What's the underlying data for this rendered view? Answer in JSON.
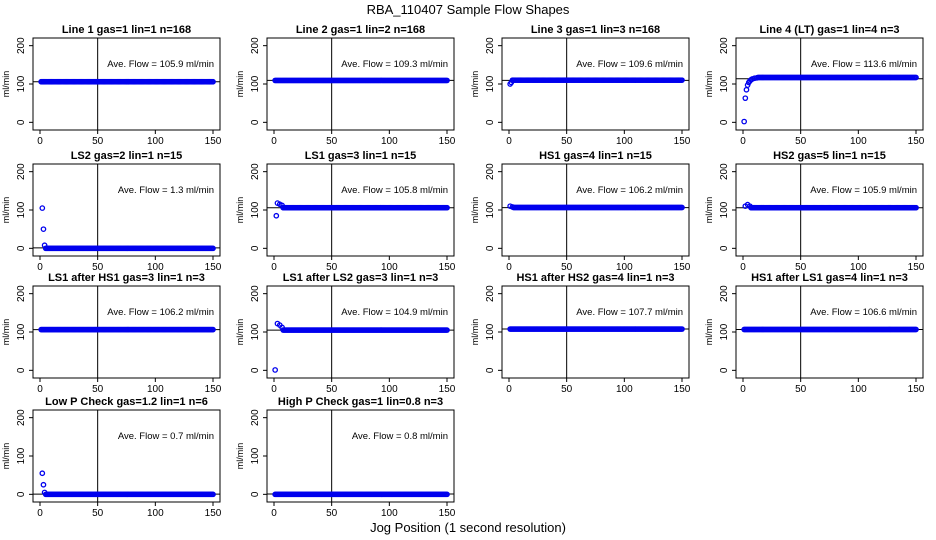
{
  "title": "RBA_110407  Sample Flow Shapes",
  "xlabel": "Jog Position (1 second resolution)",
  "colors": {
    "points": "#0000ee",
    "axis": "#000000",
    "background": "#ffffff"
  },
  "chart_data": [
    {
      "type": "scatter",
      "title": "Line 1 gas=1 lin=1 n=168",
      "ylabel": "ml/min",
      "annotation": "Ave. Flow = 105.9  ml/min",
      "xlim": [
        0,
        150
      ],
      "ylim": [
        -20,
        220
      ],
      "xticks": [
        0,
        50,
        100,
        150
      ],
      "yticks": [
        0,
        100,
        200
      ],
      "vline": 50,
      "hline": 105.9,
      "plateau": 105.9,
      "x_end": 150,
      "spike_points": []
    },
    {
      "type": "scatter",
      "title": "Line 2 gas=1 lin=2 n=168",
      "ylabel": "ml/min",
      "annotation": "Ave. Flow = 109.3  ml/min",
      "xlim": [
        0,
        150
      ],
      "ylim": [
        -20,
        220
      ],
      "xticks": [
        0,
        50,
        100,
        150
      ],
      "yticks": [
        0,
        100,
        200
      ],
      "vline": 50,
      "hline": 109.3,
      "plateau": 109.3,
      "x_end": 150,
      "spike_points": []
    },
    {
      "type": "scatter",
      "title": "Line 3 gas=1 lin=3 n=168",
      "ylabel": "ml/min",
      "annotation": "Ave. Flow = 109.6  ml/min",
      "xlim": [
        0,
        150
      ],
      "ylim": [
        -20,
        220
      ],
      "xticks": [
        0,
        50,
        100,
        150
      ],
      "yticks": [
        0,
        100,
        200
      ],
      "vline": 50,
      "hline": 109.6,
      "plateau": 110,
      "x_end": 150,
      "spike_points": [
        [
          1,
          100
        ],
        [
          2,
          104
        ]
      ]
    },
    {
      "type": "scatter",
      "title": "Line 4 (LT) gas=1 lin=4 n=3",
      "ylabel": "ml/min",
      "annotation": "Ave. Flow = 113.6  ml/min",
      "xlim": [
        0,
        150
      ],
      "ylim": [
        -20,
        220
      ],
      "xticks": [
        0,
        50,
        100,
        150
      ],
      "yticks": [
        0,
        100,
        200
      ],
      "vline": 50,
      "hline": 113.6,
      "plateau": 117,
      "x_end": 150,
      "spike_points": [
        [
          1,
          2
        ],
        [
          2,
          63
        ],
        [
          3,
          85
        ],
        [
          4,
          97
        ],
        [
          5,
          104
        ],
        [
          6,
          108
        ],
        [
          7,
          111
        ],
        [
          8,
          113
        ],
        [
          10,
          115
        ],
        [
          12,
          116
        ]
      ]
    },
    {
      "type": "scatter",
      "title": "LS2 gas=2 lin=1 n=15",
      "ylabel": "ml/min",
      "annotation": "Ave. Flow = 1.3  ml/min",
      "xlim": [
        0,
        150
      ],
      "ylim": [
        -20,
        220
      ],
      "xticks": [
        0,
        50,
        100,
        150
      ],
      "yticks": [
        0,
        100,
        200
      ],
      "vline": 50,
      "hline": 1.3,
      "plateau": 0,
      "x_end": 150,
      "spike_points": [
        [
          2,
          105
        ],
        [
          3,
          50
        ],
        [
          4,
          8
        ]
      ]
    },
    {
      "type": "scatter",
      "title": "LS1 gas=3 lin=1 n=15",
      "ylabel": "ml/min",
      "annotation": "Ave. Flow = 105.8  ml/min",
      "xlim": [
        0,
        150
      ],
      "ylim": [
        -20,
        220
      ],
      "xticks": [
        0,
        50,
        100,
        150
      ],
      "yticks": [
        0,
        100,
        200
      ],
      "vline": 50,
      "hline": 105.8,
      "plateau": 106,
      "x_end": 150,
      "spike_points": [
        [
          2,
          85
        ],
        [
          3,
          118
        ],
        [
          5,
          115
        ],
        [
          7,
          112
        ]
      ]
    },
    {
      "type": "scatter",
      "title": "HS1 gas=4 lin=1 n=15",
      "ylabel": "ml/min",
      "annotation": "Ave. Flow = 106.2  ml/min",
      "xlim": [
        0,
        150
      ],
      "ylim": [
        -20,
        220
      ],
      "xticks": [
        0,
        50,
        100,
        150
      ],
      "yticks": [
        0,
        100,
        200
      ],
      "vline": 50,
      "hline": 106.2,
      "plateau": 106.5,
      "x_end": 150,
      "spike_points": [
        [
          1,
          110
        ],
        [
          3,
          108
        ]
      ]
    },
    {
      "type": "scatter",
      "title": "HS2 gas=5 lin=1 n=15",
      "ylabel": "ml/min",
      "annotation": "Ave. Flow = 105.9  ml/min",
      "xlim": [
        0,
        150
      ],
      "ylim": [
        -20,
        220
      ],
      "xticks": [
        0,
        50,
        100,
        150
      ],
      "yticks": [
        0,
        100,
        200
      ],
      "vline": 50,
      "hline": 105.9,
      "plateau": 106,
      "x_end": 150,
      "spike_points": [
        [
          2,
          110
        ],
        [
          4,
          114
        ],
        [
          6,
          110
        ]
      ]
    },
    {
      "type": "scatter",
      "title": "LS1 after HS1 gas=3 lin=1 n=3",
      "ylabel": "ml/min",
      "annotation": "Ave. Flow = 106.2  ml/min",
      "xlim": [
        0,
        150
      ],
      "ylim": [
        -20,
        220
      ],
      "xticks": [
        0,
        50,
        100,
        150
      ],
      "yticks": [
        0,
        100,
        200
      ],
      "vline": 50,
      "hline": 106.2,
      "plateau": 106.2,
      "x_end": 150,
      "spike_points": []
    },
    {
      "type": "scatter",
      "title": "LS1 after LS2 gas=3 lin=1 n=3",
      "ylabel": "ml/min",
      "annotation": "Ave. Flow = 104.9  ml/min",
      "xlim": [
        0,
        150
      ],
      "ylim": [
        -20,
        220
      ],
      "xticks": [
        0,
        50,
        100,
        150
      ],
      "yticks": [
        0,
        100,
        200
      ],
      "vline": 50,
      "hline": 104.9,
      "plateau": 105,
      "x_end": 150,
      "spike_points": [
        [
          1,
          1
        ],
        [
          3,
          122
        ],
        [
          5,
          118
        ],
        [
          7,
          112
        ]
      ]
    },
    {
      "type": "scatter",
      "title": "HS1 after HS2 gas=4 lin=1 n=3",
      "ylabel": "ml/min",
      "annotation": "Ave. Flow = 107.7  ml/min",
      "xlim": [
        0,
        150
      ],
      "ylim": [
        -20,
        220
      ],
      "xticks": [
        0,
        50,
        100,
        150
      ],
      "yticks": [
        0,
        100,
        200
      ],
      "vline": 50,
      "hline": 107.7,
      "plateau": 107.7,
      "x_end": 150,
      "spike_points": []
    },
    {
      "type": "scatter",
      "title": "HS1 after LS1 gas=4 lin=1 n=3",
      "ylabel": "ml/min",
      "annotation": "Ave. Flow = 106.6  ml/min",
      "xlim": [
        0,
        150
      ],
      "ylim": [
        -20,
        220
      ],
      "xticks": [
        0,
        50,
        100,
        150
      ],
      "yticks": [
        0,
        100,
        200
      ],
      "vline": 50,
      "hline": 106.6,
      "plateau": 106.6,
      "x_end": 150,
      "spike_points": []
    },
    {
      "type": "scatter",
      "title": "Low P Check gas=1.2 lin=1 n=6",
      "ylabel": "ml/min",
      "annotation": "Ave. Flow = 0.7  ml/min",
      "xlim": [
        0,
        150
      ],
      "ylim": [
        -20,
        220
      ],
      "xticks": [
        0,
        50,
        100,
        150
      ],
      "yticks": [
        0,
        100,
        200
      ],
      "vline": 50,
      "hline": 0.7,
      "plateau": 0,
      "x_end": 150,
      "spike_points": [
        [
          2,
          55
        ],
        [
          3,
          25
        ],
        [
          4,
          5
        ]
      ]
    },
    {
      "type": "scatter",
      "title": "High P Check gas=1 lin=0.8 n=3",
      "ylabel": "ml/min",
      "annotation": "Ave. Flow = 0.8  ml/min",
      "xlim": [
        0,
        150
      ],
      "ylim": [
        -20,
        220
      ],
      "xticks": [
        0,
        50,
        100,
        150
      ],
      "yticks": [
        0,
        100,
        200
      ],
      "vline": 50,
      "hline": 0.8,
      "plateau": 0,
      "x_end": 150,
      "spike_points": []
    }
  ]
}
